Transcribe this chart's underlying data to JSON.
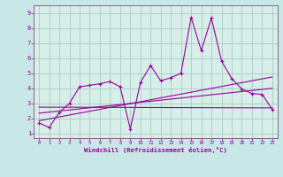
{
  "background_color": "#c8e8e8",
  "plot_bg_color": "#d8eee8",
  "grid_color": "#a8ccc8",
  "line_color": "#990099",
  "spine_color": "#886688",
  "xlabel": "Windchill (Refroidissement éolien,°C)",
  "xlim": [
    -0.5,
    23.5
  ],
  "ylim": [
    0.7,
    9.5
  ],
  "yticks": [
    1,
    2,
    3,
    4,
    5,
    6,
    7,
    8,
    9
  ],
  "xticks": [
    0,
    1,
    2,
    3,
    4,
    5,
    6,
    7,
    8,
    9,
    10,
    11,
    12,
    13,
    14,
    15,
    16,
    17,
    18,
    19,
    20,
    21,
    22,
    23
  ],
  "main_x": [
    0,
    1,
    2,
    3,
    4,
    5,
    6,
    7,
    8,
    9,
    10,
    11,
    12,
    13,
    14,
    15,
    16,
    17,
    18,
    19,
    20,
    21,
    22,
    23
  ],
  "main_y": [
    1.7,
    1.4,
    2.4,
    3.0,
    4.1,
    4.2,
    4.3,
    4.45,
    4.1,
    1.3,
    4.4,
    5.5,
    4.5,
    4.7,
    5.0,
    8.7,
    6.5,
    8.65,
    5.8,
    4.65,
    3.95,
    3.65,
    3.6,
    2.6
  ],
  "line1_x": [
    0,
    23
  ],
  "line1_y": [
    1.85,
    4.75
  ],
  "line2_x": [
    0,
    23
  ],
  "line2_y": [
    2.35,
    4.0
  ],
  "line3_x": [
    0,
    23
  ],
  "line3_y": [
    2.75,
    2.7
  ]
}
